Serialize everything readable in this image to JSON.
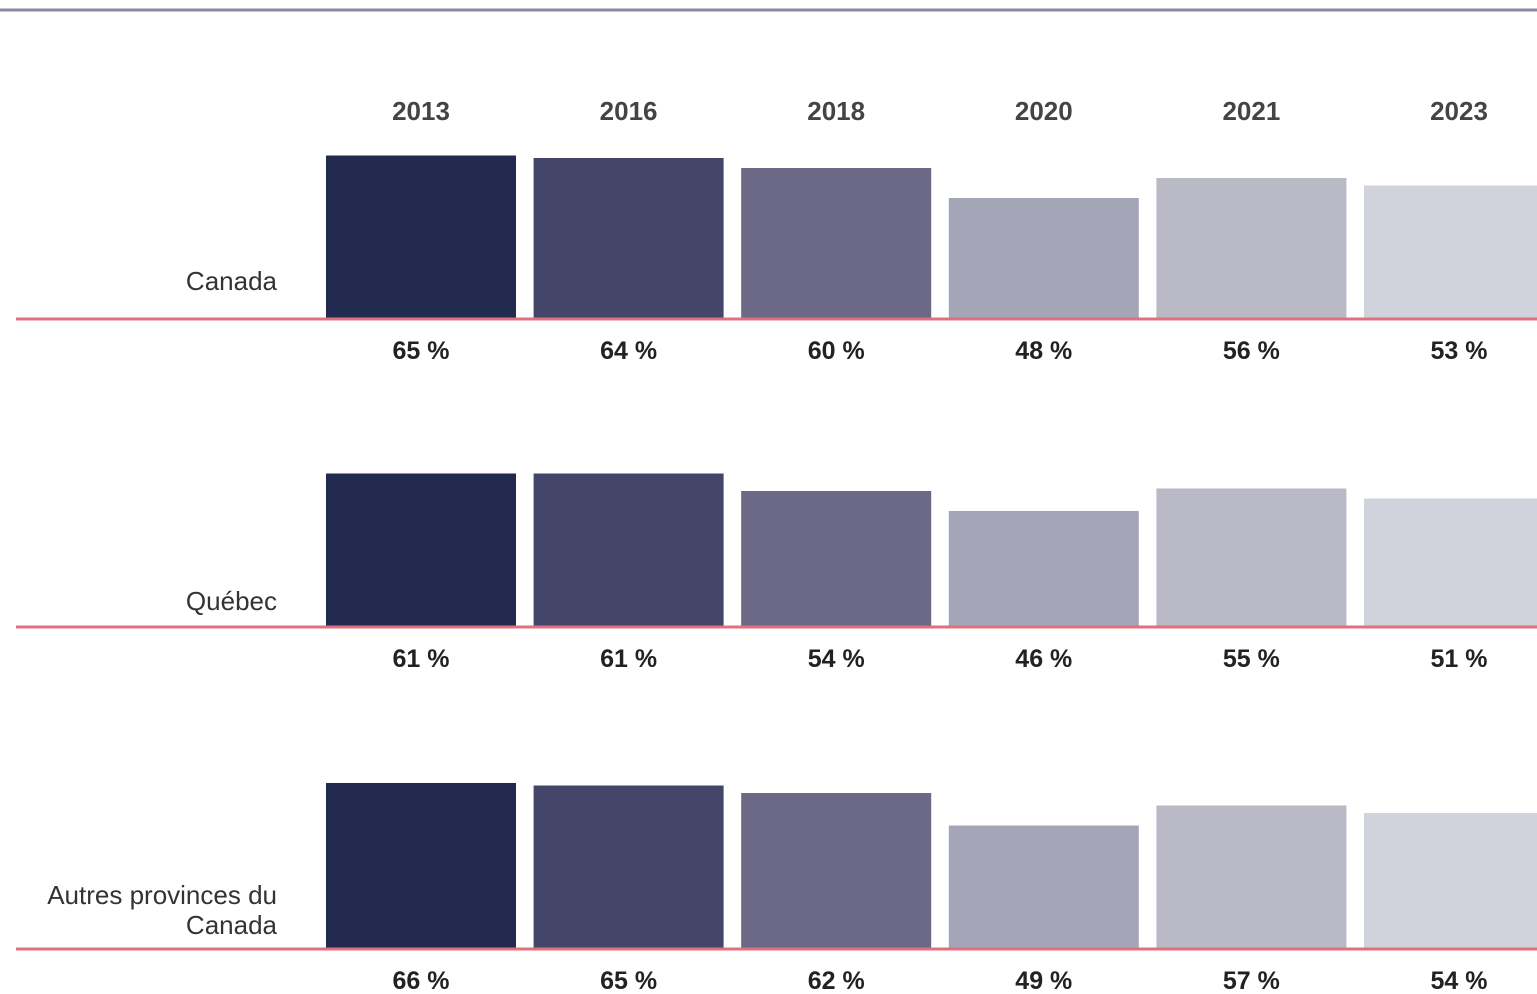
{
  "chart_data": {
    "type": "bar",
    "categories": [
      "2013",
      "2016",
      "2018",
      "2020",
      "2021",
      "2023"
    ],
    "colors": [
      "#222a4f",
      "#434569",
      "#6b6985",
      "#a4a6b8",
      "#b9bac6",
      "#d0d3dc"
    ],
    "series": [
      {
        "name": "Canada",
        "values": [
          65,
          64,
          60,
          48,
          56,
          53
        ],
        "value_labels": [
          "65 %",
          "64 %",
          "60 %",
          "48 %",
          "56 %",
          "53 %"
        ]
      },
      {
        "name": "Québec",
        "values": [
          61,
          61,
          54,
          46,
          55,
          51
        ],
        "value_labels": [
          "61 %",
          "61 %",
          "54 %",
          "46 %",
          "55 %",
          "51 %"
        ]
      },
      {
        "name": "Autres provinces du Canada",
        "values": [
          66,
          65,
          62,
          49,
          57,
          54
        ],
        "value_labels": [
          "66 %",
          "65 %",
          "62 %",
          "49 %",
          "57 %",
          "54 %"
        ]
      }
    ]
  }
}
